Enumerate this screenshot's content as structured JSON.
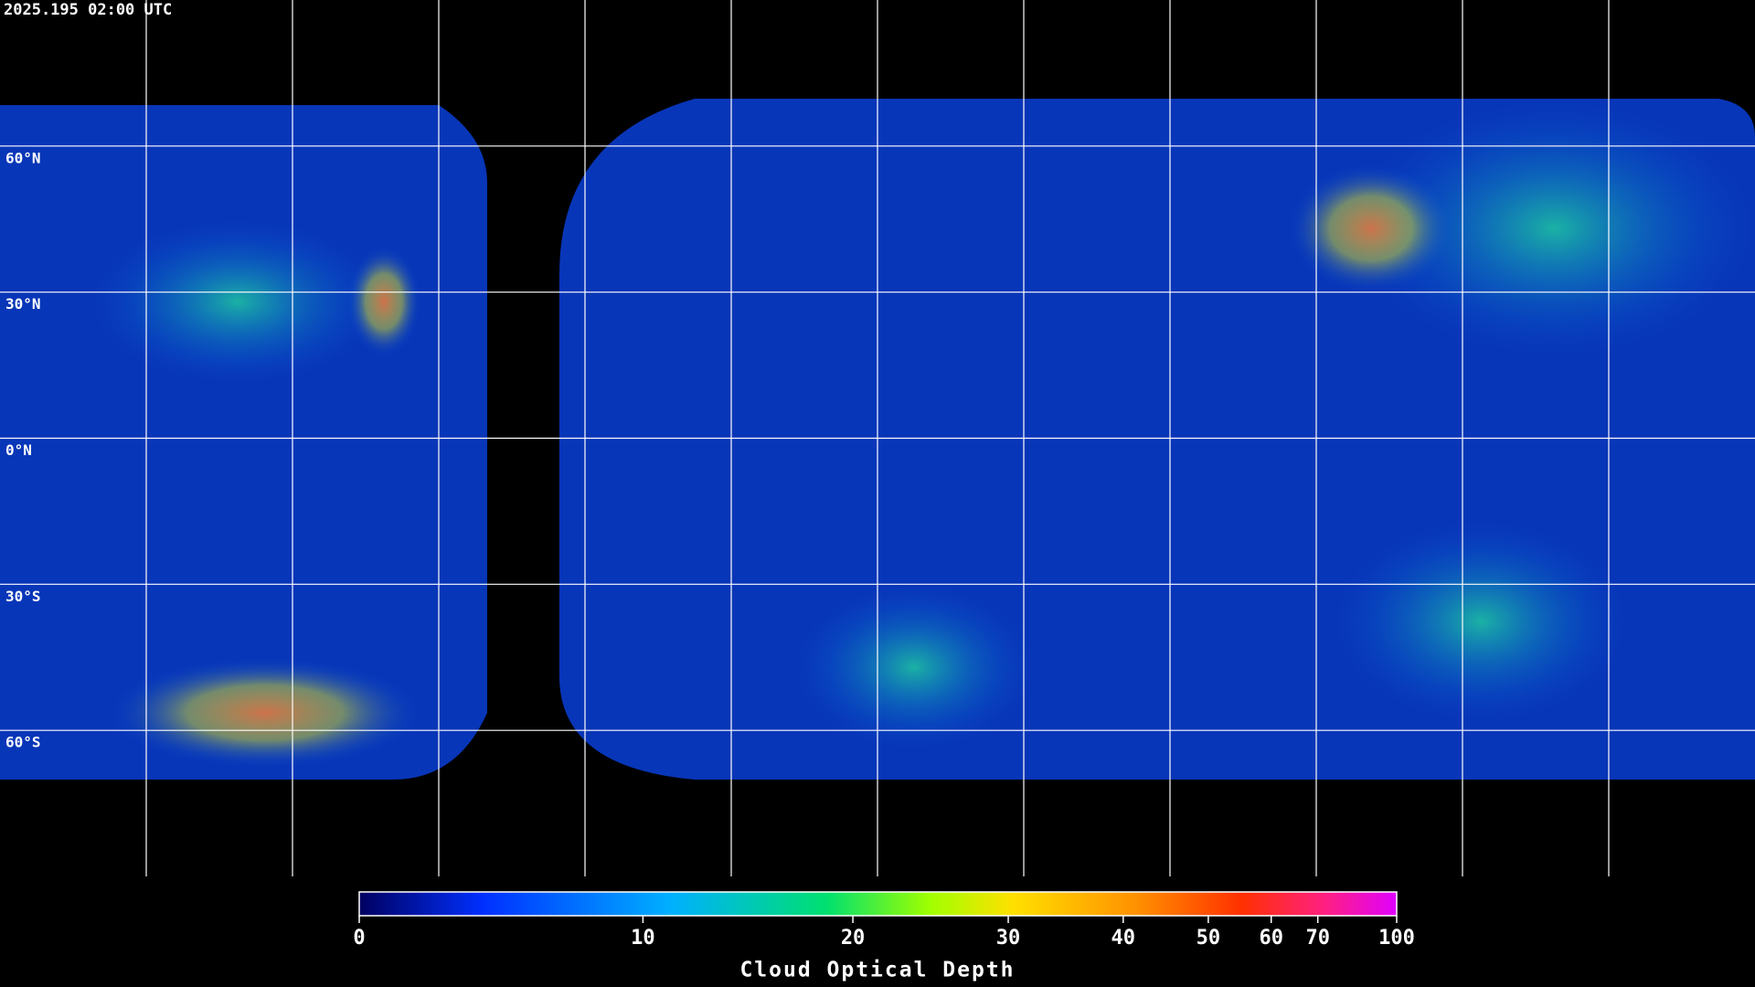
{
  "header": {
    "timestamp": "2025.195 02:00 UTC"
  },
  "map": {
    "lat_labels": [
      {
        "value": 60,
        "label": "60°N"
      },
      {
        "value": 30,
        "label": "30°N"
      },
      {
        "value": 0,
        "label": "0°N"
      },
      {
        "value": -30,
        "label": "30°S"
      },
      {
        "value": -60,
        "label": "60°S"
      }
    ]
  },
  "colorbar": {
    "title": "Cloud Optical Depth",
    "range": [
      0,
      100
    ],
    "ticks": [
      0,
      10,
      20,
      30,
      40,
      50,
      60,
      70,
      100
    ]
  }
}
